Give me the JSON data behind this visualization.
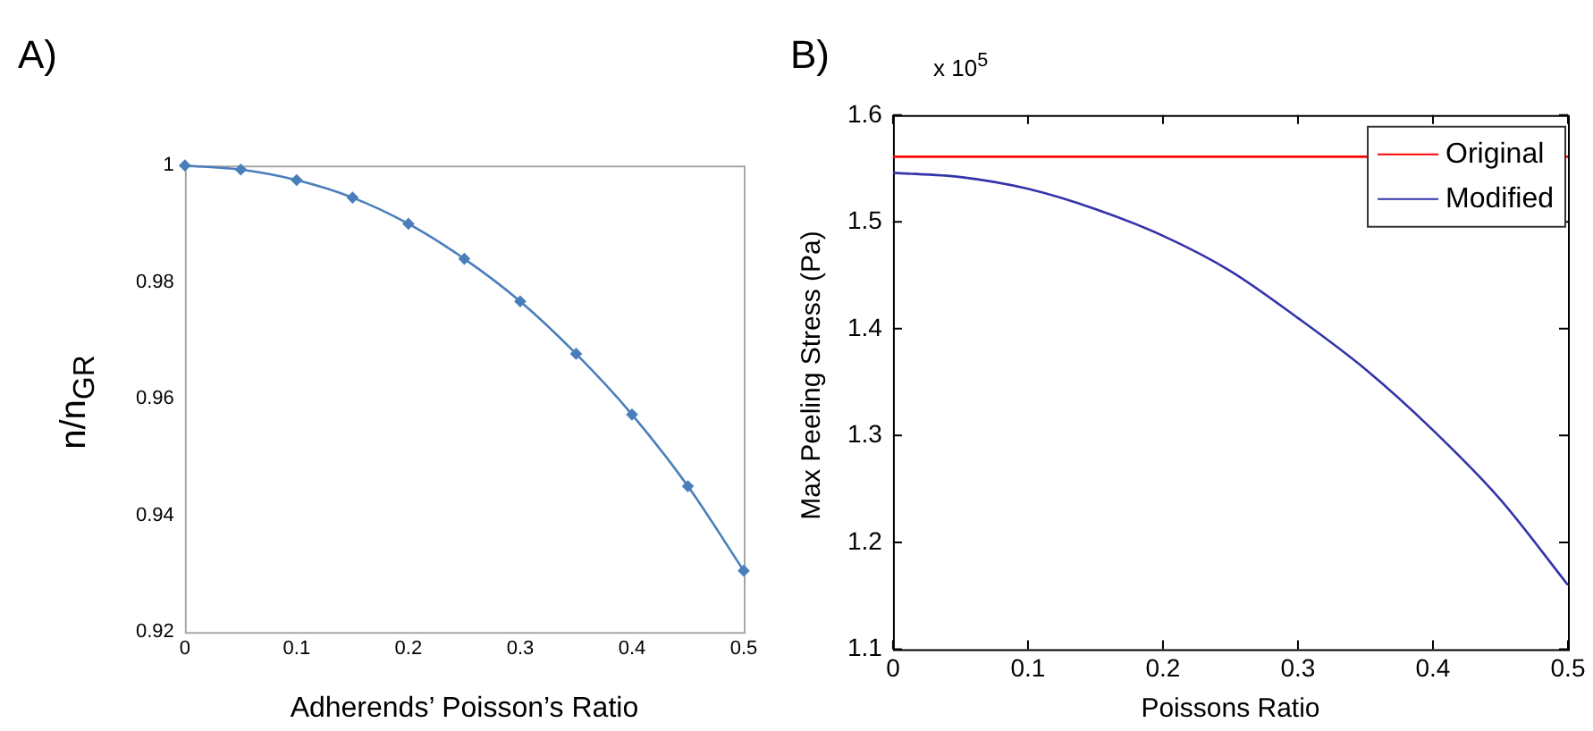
{
  "chart_data": [
    {
      "type": "line",
      "title": "A)",
      "xlabel": "Adherends’ Poisson’s Ratio",
      "ylabel": "n/n$_{GR}$",
      "x": [
        0,
        0.05,
        0.1,
        0.15,
        0.2,
        0.25,
        0.3,
        0.35,
        0.4,
        0.45,
        0.5
      ],
      "values": [
        1,
        0.9993,
        0.9975,
        0.9945,
        0.99,
        0.984,
        0.9767,
        0.9677,
        0.9573,
        0.945,
        0.9305
      ],
      "color": "#4a7ebb",
      "marker": "diamond",
      "xlim": [
        0,
        0.5
      ],
      "xticks": [
        0,
        0.1,
        0.2,
        0.3,
        0.4,
        0.5
      ],
      "ylim": [
        0.92,
        1
      ],
      "yticks": [
        0.92,
        0.94,
        0.96,
        0.98,
        1
      ]
    },
    {
      "type": "line",
      "title": "B)",
      "xlabel": "Poissons Ratio",
      "ylabel": "Max Peeling Stress (Pa)",
      "annotations": [
        "x 10$^{5}$"
      ],
      "x": [
        0,
        0.05,
        0.1,
        0.15,
        0.2,
        0.25,
        0.3,
        0.35,
        0.4,
        0.45,
        0.5
      ],
      "series": [
        {
          "name": "Original",
          "color": "#ff0000",
          "x": [
            0,
            0.5
          ],
          "values": [
            1.561,
            1.561
          ]
        },
        {
          "name": "Modified",
          "color": "#3333aa",
          "values": [
            1.546,
            1.542,
            1.531,
            1.512,
            1.487,
            1.454,
            1.41,
            1.362,
            1.305,
            1.24,
            1.16
          ]
        }
      ],
      "legend": "top right",
      "xlim": [
        0,
        0.5
      ],
      "xticks": [
        0,
        0.1,
        0.2,
        0.3,
        0.4,
        0.5
      ],
      "ylim": [
        1.1,
        1.6
      ],
      "yticks": [
        1.1,
        1.2,
        1.3,
        1.4,
        1.5,
        1.6
      ]
    }
  ]
}
